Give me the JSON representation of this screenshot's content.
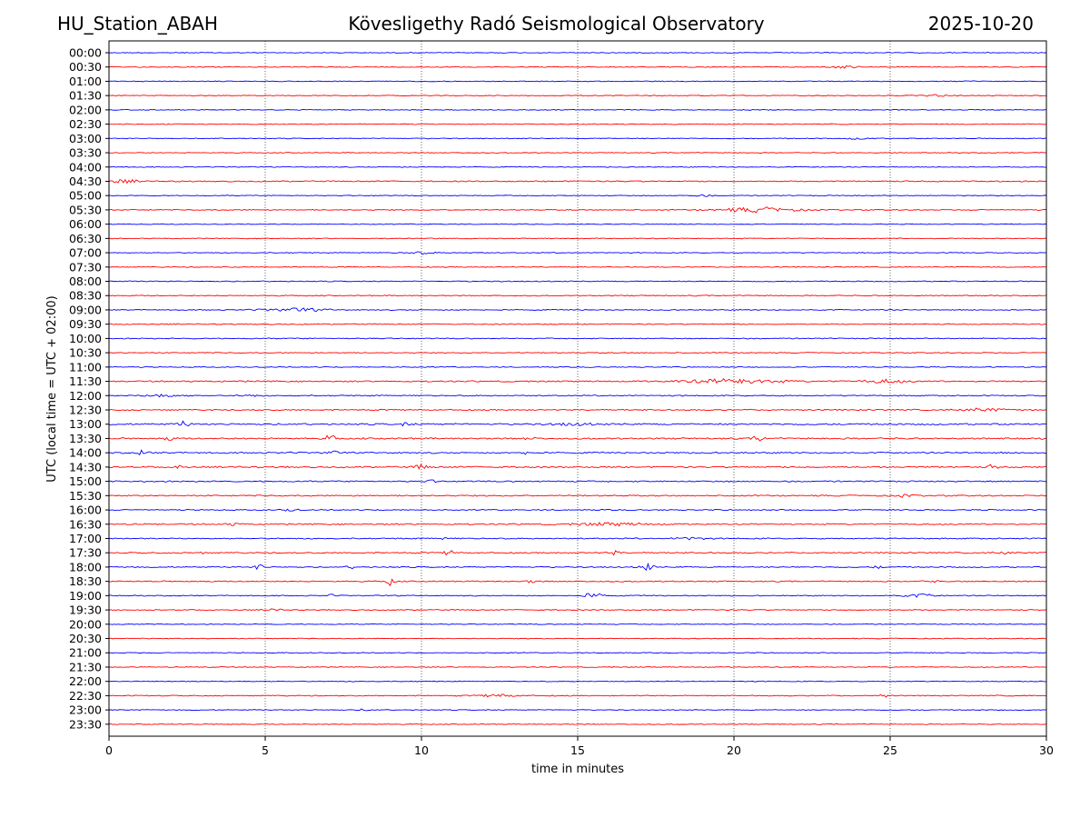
{
  "header": {
    "station": "HU_Station_ABAH",
    "observatory": "Kövesligethy Radó Seismological Observatory",
    "date": "2025-10-20"
  },
  "chart_data": {
    "type": "line",
    "title": "Kövesligethy Radó Seismological Observatory",
    "xlabel": "time in minutes",
    "ylabel": "UTC (local time = UTC + 02:00)",
    "xlim": [
      0,
      30
    ],
    "x_ticks": [
      "0",
      "5",
      "10",
      "15",
      "20",
      "25",
      "30"
    ],
    "vertical_grid_at": [
      5,
      10,
      15,
      20,
      25
    ],
    "grid": "vertical dotted",
    "colors": {
      "even_rows": "#0000ff",
      "odd_rows": "#ff0000"
    },
    "series": [
      {
        "name": "00:00",
        "color": "#0000ff",
        "noise": 0.5,
        "events": []
      },
      {
        "name": "00:30",
        "color": "#ff0000",
        "noise": 0.5,
        "events": [
          [
            23.5,
            1.2,
            0.5
          ]
        ]
      },
      {
        "name": "01:00",
        "color": "#0000ff",
        "noise": 0.5,
        "events": []
      },
      {
        "name": "01:30",
        "color": "#ff0000",
        "noise": 0.5,
        "events": [
          [
            26.5,
            1.0,
            0.4
          ]
        ]
      },
      {
        "name": "02:00",
        "color": "#0000ff",
        "noise": 0.5,
        "events": []
      },
      {
        "name": "02:30",
        "color": "#ff0000",
        "noise": 0.5,
        "events": []
      },
      {
        "name": "03:00",
        "color": "#0000ff",
        "noise": 0.5,
        "events": [
          [
            24.0,
            1.0,
            0.4
          ]
        ]
      },
      {
        "name": "03:30",
        "color": "#ff0000",
        "noise": 0.5,
        "events": []
      },
      {
        "name": "04:00",
        "color": "#0000ff",
        "noise": 0.5,
        "events": []
      },
      {
        "name": "04:30",
        "color": "#ff0000",
        "noise": 0.7,
        "events": [
          [
            0.4,
            2.0,
            0.5
          ]
        ]
      },
      {
        "name": "05:00",
        "color": "#0000ff",
        "noise": 0.5,
        "events": [
          [
            19.0,
            1.0,
            0.3
          ]
        ]
      },
      {
        "name": "05:30",
        "color": "#ff0000",
        "noise": 0.6,
        "events": [
          [
            20.8,
            2.8,
            1.2
          ]
        ]
      },
      {
        "name": "06:00",
        "color": "#0000ff",
        "noise": 0.5,
        "events": []
      },
      {
        "name": "06:30",
        "color": "#ff0000",
        "noise": 0.5,
        "events": []
      },
      {
        "name": "07:00",
        "color": "#0000ff",
        "noise": 0.5,
        "events": [
          [
            10.0,
            1.3,
            0.5
          ]
        ]
      },
      {
        "name": "07:30",
        "color": "#ff0000",
        "noise": 0.5,
        "events": []
      },
      {
        "name": "08:00",
        "color": "#0000ff",
        "noise": 0.6,
        "events": []
      },
      {
        "name": "08:30",
        "color": "#ff0000",
        "noise": 0.6,
        "events": []
      },
      {
        "name": "09:00",
        "color": "#0000ff",
        "noise": 0.6,
        "events": [
          [
            6.0,
            1.8,
            1.0
          ]
        ]
      },
      {
        "name": "09:30",
        "color": "#ff0000",
        "noise": 0.6,
        "events": []
      },
      {
        "name": "10:00",
        "color": "#0000ff",
        "noise": 0.6,
        "events": []
      },
      {
        "name": "10:30",
        "color": "#ff0000",
        "noise": 0.6,
        "events": []
      },
      {
        "name": "11:00",
        "color": "#0000ff",
        "noise": 0.6,
        "events": []
      },
      {
        "name": "11:30",
        "color": "#ff0000",
        "noise": 0.8,
        "events": [
          [
            20.0,
            2.5,
            1.5
          ],
          [
            24.8,
            2.0,
            0.7
          ]
        ]
      },
      {
        "name": "12:00",
        "color": "#0000ff",
        "noise": 0.7,
        "events": [
          [
            1.7,
            1.8,
            0.5
          ],
          [
            4.4,
            1.5,
            0.3
          ]
        ]
      },
      {
        "name": "12:30",
        "color": "#ff0000",
        "noise": 0.8,
        "events": [
          [
            28.0,
            1.5,
            0.8
          ]
        ]
      },
      {
        "name": "13:00",
        "color": "#0000ff",
        "noise": 1.0,
        "events": [
          [
            2.4,
            3.0,
            0.2
          ],
          [
            14.8,
            1.5,
            0.6
          ],
          [
            9.5,
            1.5,
            0.2
          ]
        ]
      },
      {
        "name": "13:30",
        "color": "#ff0000",
        "noise": 0.9,
        "events": [
          [
            7.1,
            5.0,
            0.15
          ],
          [
            20.8,
            5.0,
            0.15
          ],
          [
            1.9,
            2.0,
            0.2
          ],
          [
            13.5,
            1.8,
            0.2
          ]
        ]
      },
      {
        "name": "14:00",
        "color": "#0000ff",
        "noise": 0.9,
        "events": [
          [
            1.1,
            4.5,
            0.15
          ],
          [
            13.2,
            3.0,
            0.15
          ],
          [
            7.1,
            2.0,
            0.2
          ]
        ]
      },
      {
        "name": "14:30",
        "color": "#ff0000",
        "noise": 0.9,
        "events": [
          [
            2.3,
            4.0,
            0.15
          ],
          [
            10.0,
            3.0,
            0.2
          ],
          [
            28.3,
            3.0,
            0.15
          ]
        ]
      },
      {
        "name": "15:00",
        "color": "#0000ff",
        "noise": 0.8,
        "events": [
          [
            10.3,
            1.5,
            0.2
          ]
        ]
      },
      {
        "name": "15:30",
        "color": "#ff0000",
        "noise": 0.8,
        "events": [
          [
            25.5,
            1.5,
            0.3
          ]
        ]
      },
      {
        "name": "16:00",
        "color": "#0000ff",
        "noise": 0.7,
        "events": [
          [
            5.8,
            1.5,
            0.2
          ]
        ]
      },
      {
        "name": "16:30",
        "color": "#ff0000",
        "noise": 0.8,
        "events": [
          [
            16.0,
            1.6,
            1.2
          ],
          [
            4.0,
            1.3,
            0.3
          ]
        ]
      },
      {
        "name": "17:00",
        "color": "#0000ff",
        "noise": 0.7,
        "events": [
          [
            18.6,
            1.8,
            0.4
          ],
          [
            10.6,
            1.3,
            0.2
          ]
        ]
      },
      {
        "name": "17:30",
        "color": "#ff0000",
        "noise": 0.8,
        "events": [
          [
            10.9,
            4.0,
            0.15
          ],
          [
            16.2,
            3.0,
            0.15
          ],
          [
            3.0,
            1.5,
            0.1
          ],
          [
            18.3,
            1.5,
            0.1
          ],
          [
            28.6,
            1.5,
            0.3
          ]
        ]
      },
      {
        "name": "18:00",
        "color": "#0000ff",
        "noise": 0.7,
        "events": [
          [
            4.8,
            5.5,
            0.12
          ],
          [
            17.2,
            5.0,
            0.2
          ],
          [
            7.8,
            1.5,
            0.2
          ],
          [
            24.6,
            2.0,
            0.12
          ]
        ]
      },
      {
        "name": "18:30",
        "color": "#ff0000",
        "noise": 0.7,
        "events": [
          [
            9.0,
            5.0,
            0.12
          ],
          [
            13.5,
            1.5,
            0.2
          ],
          [
            26.3,
            1.5,
            0.2
          ]
        ]
      },
      {
        "name": "19:00",
        "color": "#0000ff",
        "noise": 0.6,
        "events": [
          [
            15.5,
            3.0,
            0.3
          ],
          [
            26.0,
            2.0,
            0.5
          ],
          [
            7.1,
            1.5,
            0.1
          ]
        ]
      },
      {
        "name": "19:30",
        "color": "#ff0000",
        "noise": 0.6,
        "events": [
          [
            5.3,
            1.4,
            0.2
          ]
        ]
      },
      {
        "name": "20:00",
        "color": "#0000ff",
        "noise": 0.5,
        "events": []
      },
      {
        "name": "20:30",
        "color": "#ff0000",
        "noise": 0.5,
        "events": []
      },
      {
        "name": "21:00",
        "color": "#0000ff",
        "noise": 0.5,
        "events": []
      },
      {
        "name": "21:30",
        "color": "#ff0000",
        "noise": 0.5,
        "events": [
          [
            3.4,
            1.0,
            0.2
          ]
        ]
      },
      {
        "name": "22:00",
        "color": "#0000ff",
        "noise": 0.5,
        "events": []
      },
      {
        "name": "22:30",
        "color": "#ff0000",
        "noise": 0.6,
        "events": [
          [
            12.5,
            1.8,
            0.6
          ],
          [
            24.8,
            1.4,
            0.2
          ]
        ]
      },
      {
        "name": "23:00",
        "color": "#0000ff",
        "noise": 0.5,
        "events": [
          [
            8.2,
            1.2,
            0.2
          ]
        ]
      },
      {
        "name": "23:30",
        "color": "#ff0000",
        "noise": 0.5,
        "events": []
      }
    ]
  }
}
